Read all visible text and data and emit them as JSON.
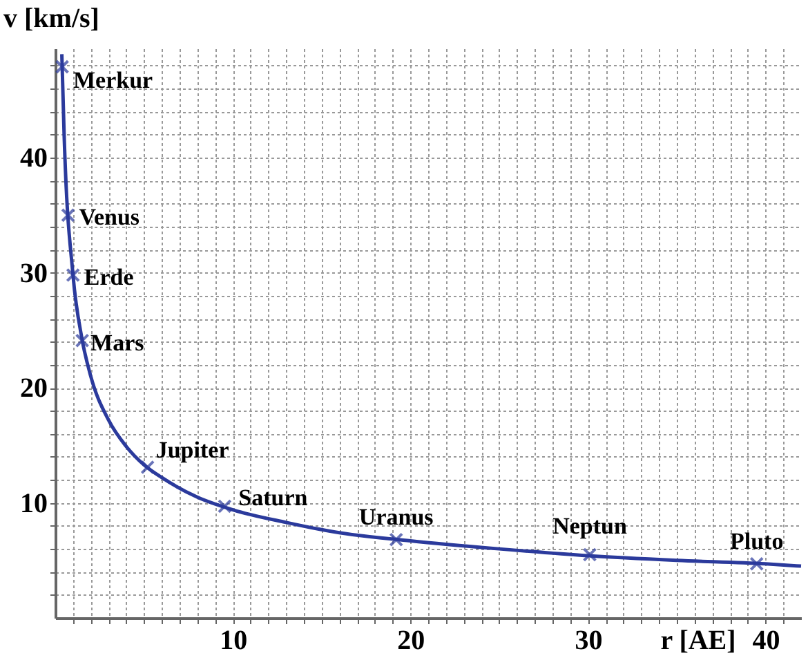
{
  "chart_data": {
    "type": "line",
    "xlabel": "r [AE]",
    "ylabel": "v [km/s]",
    "xlim": [
      0,
      42
    ],
    "ylim": [
      0,
      49.5
    ],
    "xticks": [
      {
        "value": 1,
        "label": null
      },
      {
        "value": 2,
        "label": null
      },
      {
        "value": 3,
        "label": null
      },
      {
        "value": 4,
        "label": null
      },
      {
        "value": 5,
        "label": null
      },
      {
        "value": 6,
        "label": null
      },
      {
        "value": 7,
        "label": null
      },
      {
        "value": 8,
        "label": null
      },
      {
        "value": 9,
        "label": null
      },
      10,
      {
        "value": 11,
        "label": null
      },
      {
        "value": 12,
        "label": null
      },
      {
        "value": 13,
        "label": null
      },
      {
        "value": 14,
        "label": null
      },
      {
        "value": 15,
        "label": null
      },
      {
        "value": 16,
        "label": null
      },
      {
        "value": 17,
        "label": null
      },
      {
        "value": 18,
        "label": null
      },
      {
        "value": 19,
        "label": null
      },
      20,
      {
        "value": 21,
        "label": null
      },
      {
        "value": 22,
        "label": null
      },
      {
        "value": 23,
        "label": null
      },
      {
        "value": 24,
        "label": null
      },
      {
        "value": 25,
        "label": null
      },
      {
        "value": 26,
        "label": null
      },
      {
        "value": 27,
        "label": null
      },
      {
        "value": 28,
        "label": null
      },
      {
        "value": 29,
        "label": null
      },
      30,
      {
        "value": 31,
        "label": null
      },
      {
        "value": 32,
        "label": null
      },
      {
        "value": 33,
        "label": null
      },
      {
        "value": 34,
        "label": null
      },
      {
        "value": 35,
        "label": null
      },
      {
        "value": 36,
        "label": null
      },
      {
        "value": 37,
        "label": null
      },
      {
        "value": 38,
        "label": null
      },
      {
        "value": 39,
        "label": null
      },
      40,
      {
        "value": 41,
        "label": null
      }
    ],
    "yticks": [
      {
        "value": 2,
        "label": null
      },
      {
        "value": 4,
        "label": null
      },
      {
        "value": 6,
        "label": null
      },
      {
        "value": 8,
        "label": null
      },
      10,
      {
        "value": 12,
        "label": null
      },
      {
        "value": 14,
        "label": null
      },
      {
        "value": 16,
        "label": null
      },
      {
        "value": 18,
        "label": null
      },
      20,
      {
        "value": 22,
        "label": null
      },
      {
        "value": 24,
        "label": null
      },
      {
        "value": 26,
        "label": null
      },
      {
        "value": 28,
        "label": null
      },
      30,
      {
        "value": 32,
        "label": null
      },
      {
        "value": 34,
        "label": null
      },
      {
        "value": 36,
        "label": null
      },
      {
        "value": 38,
        "label": null
      },
      40,
      {
        "value": 42,
        "label": null
      },
      {
        "value": 44,
        "label": null
      },
      {
        "value": 46,
        "label": null
      },
      {
        "value": 48,
        "label": null
      }
    ],
    "grid": true,
    "line_style": "solid",
    "series": [
      {
        "color": "#2b3a9c",
        "marker": "none",
        "x": [
          0.37,
          0.5,
          1,
          1.5,
          2,
          3,
          4,
          5,
          6,
          8,
          10,
          13,
          16,
          20,
          25,
          30,
          35,
          40,
          42
        ],
        "values": [
          49,
          42,
          29.8,
          24.3,
          21,
          17.2,
          14.9,
          13.3,
          12.2,
          10.5,
          9.4,
          8.3,
          7.4,
          6.7,
          6,
          5.4,
          5,
          4.7,
          4.5
        ]
      },
      {
        "type": "scatter",
        "color": "#2b3a9c",
        "marker": "cross",
        "x": [
          0.39,
          0.72,
          1,
          1.52,
          5.2,
          9.54,
          19.2,
          30.1,
          39.5
        ],
        "values": [
          47.9,
          35,
          29.8,
          24.1,
          13.1,
          9.7,
          6.8,
          5.5,
          4.7
        ]
      }
    ],
    "annotations": [
      {
        "text": "Merkur",
        "x": 0.39,
        "y": 47.9
      },
      {
        "text": "Venus",
        "x": 0.72,
        "y": 35
      },
      {
        "text": "Erde",
        "x": 1,
        "y": 29.8
      },
      {
        "text": "Mars",
        "x": 1.52,
        "y": 24.1
      },
      {
        "text": "Jupiter",
        "x": 5.2,
        "y": 13.1
      },
      {
        "text": "Saturn",
        "x": 9.54,
        "y": 9.7
      },
      {
        "text": "Uranus",
        "x": 19.2,
        "y": 6.8
      },
      {
        "text": "Neptun",
        "x": 30.1,
        "y": 5.5
      },
      {
        "text": "Pluto",
        "x": 39.5,
        "y": 4.7
      }
    ]
  }
}
